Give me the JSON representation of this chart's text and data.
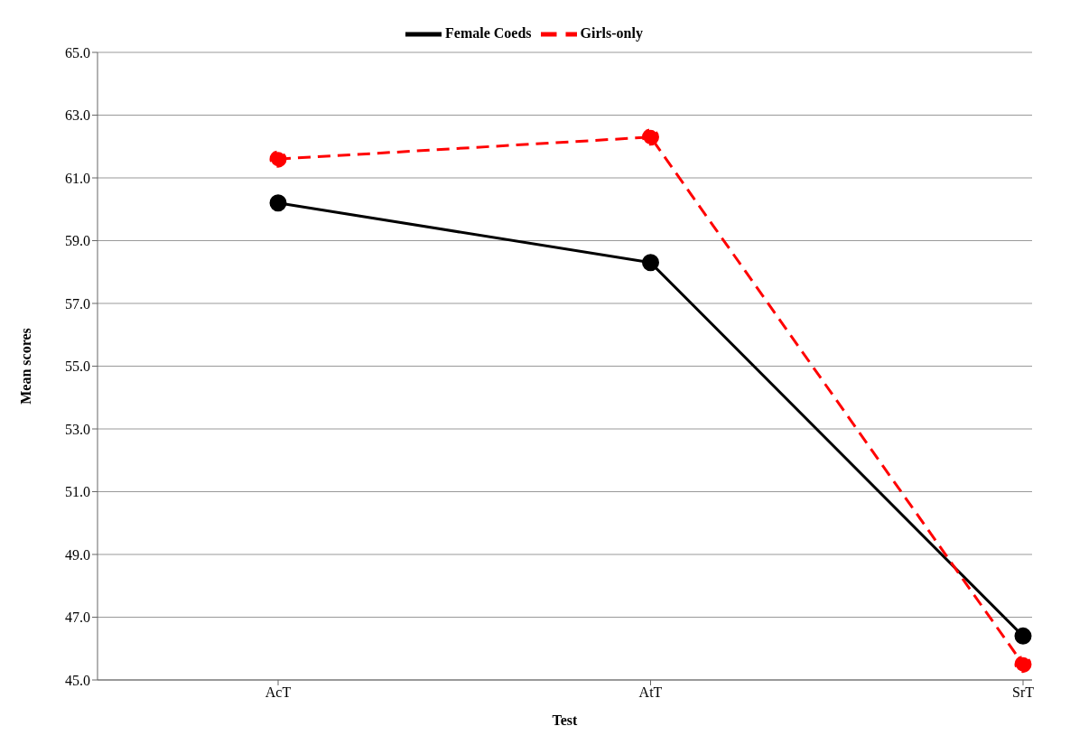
{
  "chart_data": {
    "type": "line",
    "xlabel": "Test",
    "ylabel": "Mean scores",
    "categories": [
      "AcT",
      "AtT",
      "SrT"
    ],
    "series": [
      {
        "name": "Female Coeds",
        "color": "#000000",
        "values": [
          60.2,
          58.3,
          46.4
        ],
        "line_style": "solid"
      },
      {
        "name": "Girls-only",
        "color": "#ff0000",
        "values": [
          61.6,
          62.3,
          45.5
        ],
        "line_style": "dashed"
      }
    ],
    "ylim": [
      45,
      65
    ],
    "yticks": [
      {
        "value": 45,
        "label": "45.0"
      },
      {
        "value": 47,
        "label": "47.0"
      },
      {
        "value": 49,
        "label": "49.0"
      },
      {
        "value": 51,
        "label": "51.0"
      },
      {
        "value": 53,
        "label": "53.0"
      },
      {
        "value": 55,
        "label": "55.0"
      },
      {
        "value": 57,
        "label": "57.0"
      },
      {
        "value": 59,
        "label": "59.0"
      },
      {
        "value": 61,
        "label": "61.0"
      },
      {
        "value": 63,
        "label": "63.0"
      },
      {
        "value": 65,
        "label": "65.0"
      }
    ],
    "grid": "y",
    "legend": "top",
    "marker": "circle"
  }
}
